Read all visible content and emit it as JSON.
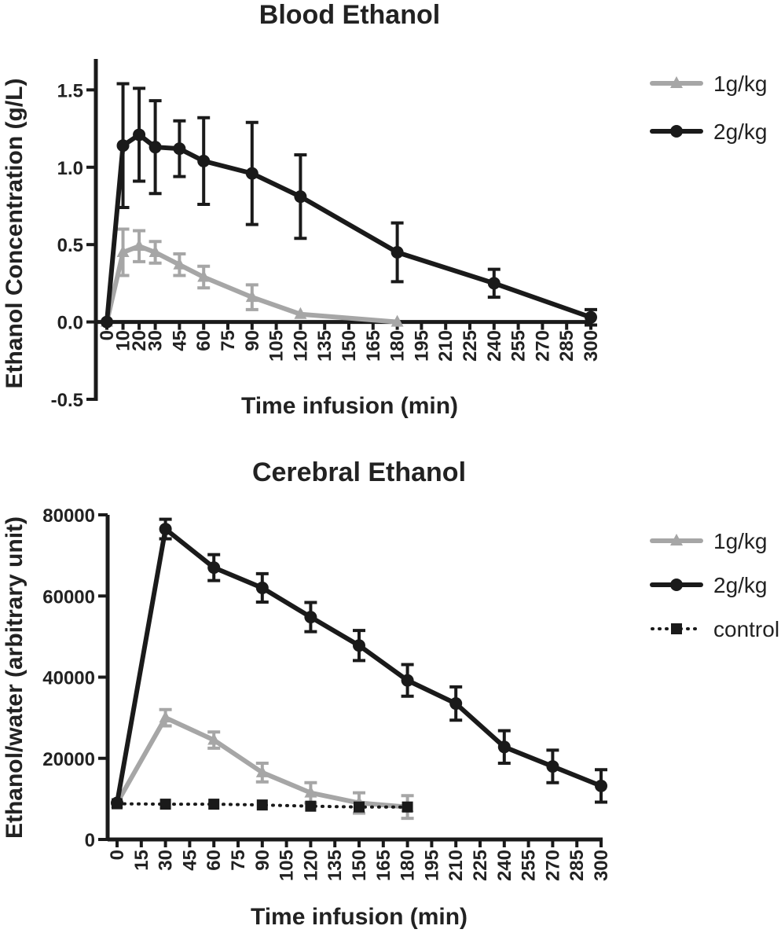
{
  "chart_data": [
    {
      "type": "line",
      "title": "Blood Ethanol",
      "xlabel": "Time infusion (min)",
      "ylabel": "Ethanol Concentration (g/L)",
      "xticks": [
        "0",
        "10",
        "20",
        "30",
        "45",
        "60",
        "75",
        "90",
        "105",
        "120",
        "135",
        "150",
        "165",
        "180",
        "195",
        "210",
        "225",
        "240",
        "255",
        "270",
        "285",
        "300"
      ],
      "yticks": [
        -0.5,
        0.0,
        0.5,
        1.0,
        1.5
      ],
      "ytick_labels": [
        "-0.5",
        "0.0",
        "0.5",
        "1.0",
        "1.5"
      ],
      "ylim": [
        -0.5,
        1.7
      ],
      "legend_position": "top-right",
      "series": [
        {
          "name": "1g/kg",
          "color": "#a6a6a6",
          "marker": "triangle",
          "line": "solid",
          "x": [
            0,
            10,
            20,
            30,
            45,
            60,
            90,
            120,
            180
          ],
          "y": [
            0.0,
            0.45,
            0.49,
            0.45,
            0.37,
            0.29,
            0.16,
            0.05,
            0.0
          ],
          "err": [
            0,
            0.15,
            0.1,
            0.07,
            0.07,
            0.07,
            0.08,
            0,
            0
          ]
        },
        {
          "name": "2g/kg",
          "color": "#1a1a1a",
          "marker": "circle",
          "line": "solid",
          "x": [
            0,
            10,
            20,
            30,
            45,
            60,
            90,
            120,
            180,
            240,
            300
          ],
          "y": [
            0.0,
            1.14,
            1.21,
            1.13,
            1.12,
            1.04,
            0.96,
            0.81,
            0.45,
            0.25,
            0.03
          ],
          "err": [
            0,
            0.4,
            0.3,
            0.3,
            0.18,
            0.28,
            0.33,
            0.27,
            0.19,
            0.09,
            0.05
          ]
        }
      ]
    },
    {
      "type": "line",
      "title": "Cerebral Ethanol",
      "xlabel": "Time infusion (min)",
      "ylabel": "Ethanol/water (arbitrary unit)",
      "xticks": [
        "0",
        "15",
        "30",
        "45",
        "60",
        "75",
        "90",
        "105",
        "120",
        "135",
        "150",
        "165",
        "180",
        "195",
        "210",
        "225",
        "240",
        "255",
        "270",
        "285",
        "300"
      ],
      "yticks": [
        0,
        20000,
        40000,
        60000,
        80000
      ],
      "ytick_labels": [
        "0",
        "20000",
        "40000",
        "60000",
        "80000"
      ],
      "ylim": [
        0,
        80000
      ],
      "legend_position": "top-right",
      "series": [
        {
          "name": "1g/kg",
          "color": "#a6a6a6",
          "marker": "triangle",
          "line": "solid",
          "x": [
            0,
            30,
            60,
            90,
            120,
            150,
            180
          ],
          "y": [
            9000,
            30000,
            24500,
            16500,
            11500,
            9000,
            8000
          ],
          "err": [
            0,
            2000,
            2000,
            2300,
            2500,
            2500,
            2800
          ]
        },
        {
          "name": "2g/kg",
          "color": "#1a1a1a",
          "marker": "circle",
          "line": "solid",
          "x": [
            0,
            30,
            60,
            90,
            120,
            150,
            180,
            210,
            240,
            270,
            300
          ],
          "y": [
            9000,
            76500,
            67000,
            62000,
            54800,
            47800,
            39200,
            33500,
            22800,
            18000,
            13200
          ],
          "err": [
            0,
            2400,
            3200,
            3500,
            3600,
            3700,
            3900,
            4100,
            4000,
            4000,
            4000
          ]
        },
        {
          "name": "control",
          "color": "#1a1a1a",
          "marker": "square",
          "line": "dotted",
          "x": [
            0,
            30,
            60,
            90,
            120,
            150,
            180
          ],
          "y": [
            8800,
            8700,
            8700,
            8500,
            8200,
            8000,
            8000
          ],
          "err": [
            0,
            0,
            0,
            0,
            0,
            0,
            0
          ]
        }
      ]
    }
  ]
}
